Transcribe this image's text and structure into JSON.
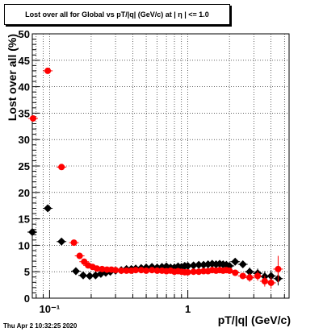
{
  "title": "Lost over all for Global vs pT/|q| (GeV/c) at |  η | <= 1.0",
  "footer": "Thu Apr  2 10:32:25 2020",
  "colors": {
    "series_black": "#000000",
    "series_red": "#ff0000",
    "grid": "#000000"
  },
  "chart_data": {
    "type": "scatter",
    "title": "Lost over all for Global vs pT/|q| (GeV/c) at |  η | <= 1.0",
    "xlabel": "pT/|q| (GeV/c)",
    "ylabel": "Lost over all (%)",
    "xscale": "log",
    "xlim": [
      0.075,
      5.4
    ],
    "ylim": [
      0,
      50
    ],
    "grid": true,
    "yticks": [
      0,
      5,
      10,
      15,
      20,
      25,
      30,
      35,
      40,
      45,
      50
    ],
    "ytick_labels": [
      "0",
      "5",
      "10",
      "15",
      "20",
      "25",
      "30",
      "35",
      "40",
      "45",
      "50"
    ],
    "xticks": [
      0.1,
      1
    ],
    "xtick_labels": [
      "10⁻¹",
      "1"
    ],
    "series": [
      {
        "color": "#000000",
        "x": [
          0.075,
          0.097,
          0.122,
          0.155,
          0.175,
          0.195,
          0.215,
          0.235,
          0.255,
          0.275,
          0.3,
          0.33,
          0.36,
          0.39,
          0.42,
          0.46,
          0.5,
          0.55,
          0.6,
          0.65,
          0.7,
          0.75,
          0.8,
          0.85,
          0.9,
          0.95,
          1.0,
          1.1,
          1.2,
          1.3,
          1.4,
          1.5,
          1.6,
          1.7,
          1.8,
          1.9,
          2.0,
          2.2,
          2.5,
          2.8,
          3.2,
          3.6,
          4.0,
          4.5
        ],
        "y": [
          12.5,
          17.0,
          10.7,
          5.1,
          4.3,
          4.2,
          4.3,
          4.6,
          4.8,
          5.0,
          5.2,
          5.3,
          5.5,
          5.5,
          5.6,
          5.7,
          5.8,
          5.9,
          5.8,
          5.9,
          6.0,
          5.8,
          5.8,
          6.0,
          5.9,
          6.1,
          6.1,
          6.2,
          6.3,
          6.3,
          6.4,
          6.5,
          6.4,
          6.5,
          6.4,
          6.3,
          6.1,
          6.9,
          6.4,
          5.0,
          4.7,
          4.1,
          4.2,
          3.7
        ],
        "yerr": [
          0.4,
          0.4,
          0.3,
          0.2,
          0.2,
          0.2,
          0.2,
          0.2,
          0.2,
          0.2,
          0.2,
          0.2,
          0.2,
          0.2,
          0.2,
          0.2,
          0.2,
          0.2,
          0.2,
          0.2,
          0.2,
          0.2,
          0.2,
          0.2,
          0.2,
          0.2,
          0.2,
          0.2,
          0.2,
          0.2,
          0.2,
          0.2,
          0.2,
          0.2,
          0.3,
          0.3,
          0.3,
          0.5,
          0.6,
          0.8,
          0.9,
          1.0,
          1.1,
          1.3
        ]
      },
      {
        "color": "#ff0000",
        "x": [
          0.076,
          0.097,
          0.122,
          0.15,
          0.165,
          0.178,
          0.19,
          0.205,
          0.22,
          0.24,
          0.26,
          0.28,
          0.3,
          0.33,
          0.36,
          0.39,
          0.42,
          0.46,
          0.5,
          0.55,
          0.6,
          0.65,
          0.7,
          0.75,
          0.8,
          0.85,
          0.9,
          0.95,
          1.0,
          1.1,
          1.2,
          1.3,
          1.4,
          1.5,
          1.6,
          1.7,
          1.8,
          1.9,
          2.0,
          2.2,
          2.5,
          2.8,
          3.2,
          3.6,
          4.0,
          4.5
        ],
        "y": [
          34.0,
          43.0,
          24.8,
          10.5,
          8.0,
          6.9,
          6.2,
          5.9,
          5.6,
          5.5,
          5.4,
          5.4,
          5.3,
          5.2,
          5.2,
          5.2,
          5.3,
          5.3,
          5.2,
          5.3,
          5.2,
          5.2,
          5.1,
          5.2,
          5.0,
          5.1,
          5.0,
          4.9,
          4.9,
          5.0,
          5.0,
          5.1,
          5.1,
          5.3,
          5.2,
          5.3,
          5.2,
          5.3,
          5.2,
          4.8,
          4.2,
          3.9,
          4.2,
          3.2,
          2.9,
          5.5
        ],
        "yerr": [
          0.5,
          0.5,
          0.4,
          0.3,
          0.2,
          0.2,
          0.2,
          0.2,
          0.2,
          0.2,
          0.2,
          0.2,
          0.2,
          0.2,
          0.2,
          0.2,
          0.2,
          0.2,
          0.2,
          0.2,
          0.2,
          0.2,
          0.2,
          0.2,
          0.2,
          0.2,
          0.2,
          0.2,
          0.2,
          0.2,
          0.2,
          0.2,
          0.2,
          0.2,
          0.3,
          0.3,
          0.3,
          0.3,
          0.3,
          0.5,
          0.6,
          0.8,
          0.9,
          1.0,
          1.1,
          2.5
        ]
      }
    ]
  }
}
